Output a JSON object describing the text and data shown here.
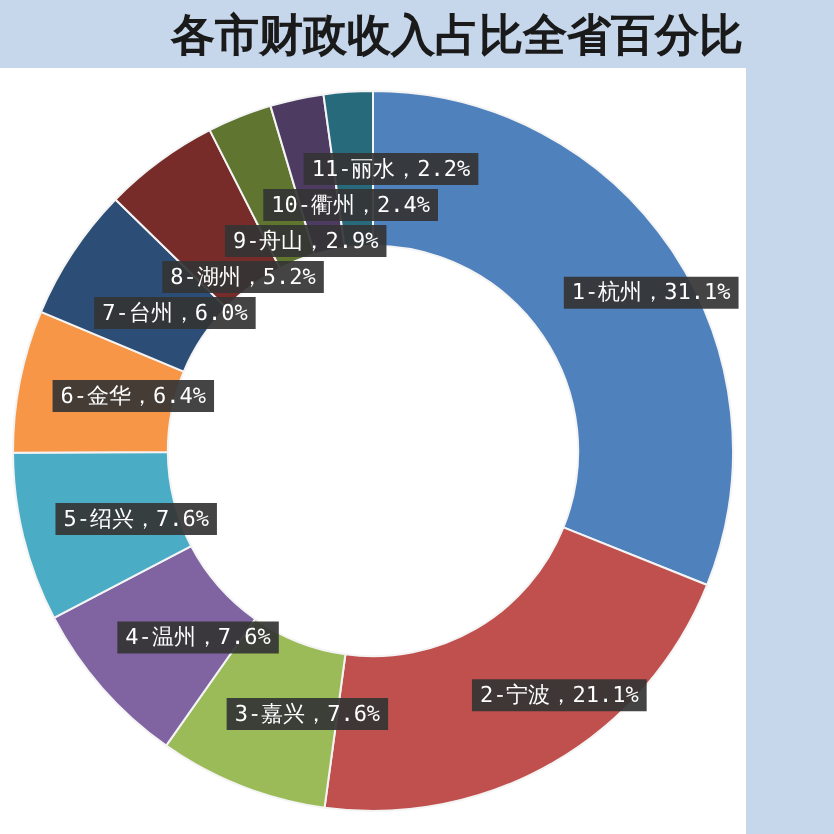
{
  "chart_data": {
    "type": "donut",
    "title": "各市财政收入占比全省百分比",
    "categories": [
      "1-杭州",
      "2-宁波",
      "3-嘉兴",
      "4-温州",
      "5-绍兴",
      "6-金华",
      "7-台州",
      "8-湖州",
      "9-舟山",
      "10-衢州",
      "11-丽水"
    ],
    "values": [
      31.1,
      21.1,
      7.6,
      7.6,
      7.6,
      6.4,
      6.0,
      5.2,
      2.9,
      2.4,
      2.2
    ],
    "value_labels": [
      "，31.1%",
      "，21.1%",
      "，7.6%",
      "，7.6%",
      "，7.6%",
      "，6.4%",
      "，6.0%",
      "，5.2%",
      "，2.9%",
      "，2.4%",
      "，2.2%"
    ],
    "colors": [
      "#4f81bd",
      "#c0504d",
      "#9bbb59",
      "#8064a2",
      "#4bacc6",
      "#f79646",
      "#2c4d75",
      "#772c2a",
      "#5f7530",
      "#4d3b62",
      "#276a7c"
    ]
  }
}
